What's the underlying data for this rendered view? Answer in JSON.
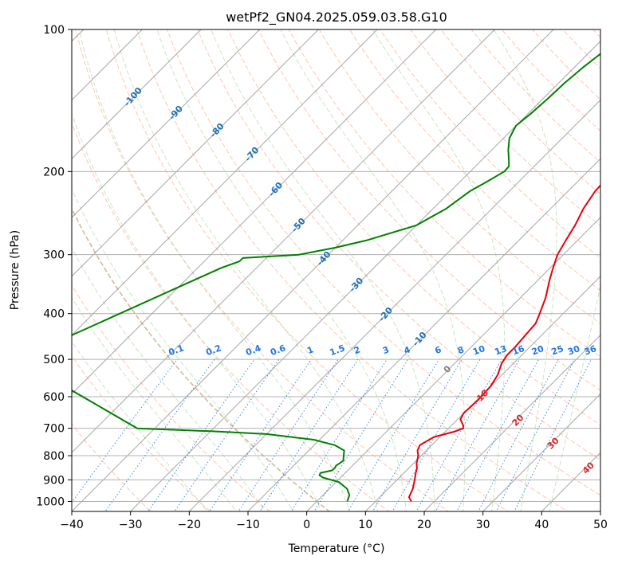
{
  "chart_data": {
    "type": "line",
    "title": "wetPf2_GN04.2025.059.03.58.G10",
    "xlabel": "Temperature (°C)",
    "ylabel": "Pressure (hPa)",
    "xlim": [
      -40,
      50
    ],
    "ylim": [
      1050,
      100
    ],
    "yscale": "log",
    "x_ticks": [
      -40,
      -30,
      -20,
      -10,
      0,
      10,
      20,
      30,
      40,
      50
    ],
    "x_tick_labels": [
      "−40",
      "−30",
      "−20",
      "−10",
      "0",
      "10",
      "20",
      "30",
      "40",
      "50"
    ],
    "y_ticks": [
      1000,
      900,
      800,
      700,
      600,
      500,
      400,
      300,
      200,
      100
    ],
    "y_tick_labels": [
      "1000",
      "900",
      "800",
      "700",
      "600",
      "500",
      "400",
      "300",
      "200",
      "100"
    ],
    "skew_per_decade": 80.3,
    "grid": true,
    "series": [
      {
        "color": "#e8000b",
        "points": [
          [
            1000,
            16.1
          ],
          [
            980,
            15.0
          ],
          [
            940,
            14.2
          ],
          [
            900,
            13.0
          ],
          [
            870,
            12.0
          ],
          [
            850,
            11.4
          ],
          [
            830,
            10.5
          ],
          [
            800,
            9.5
          ],
          [
            780,
            8.5
          ],
          [
            760,
            8.0
          ],
          [
            730,
            9.0
          ],
          [
            712,
            11.5
          ],
          [
            700,
            12.5
          ],
          [
            690,
            12.0
          ],
          [
            670,
            10.5
          ],
          [
            650,
            10.0
          ],
          [
            610,
            10.2
          ],
          [
            570,
            10.0
          ],
          [
            540,
            9.3
          ],
          [
            510,
            8.0
          ],
          [
            490,
            7.5
          ],
          [
            470,
            7.5
          ],
          [
            450,
            7.3
          ],
          [
            420,
            7.0
          ],
          [
            400,
            6.0
          ],
          [
            370,
            4.3
          ],
          [
            340,
            2.0
          ],
          [
            320,
            0.5
          ],
          [
            300,
            -1.0
          ],
          [
            280,
            -2.0
          ],
          [
            260,
            -3.0
          ],
          [
            240,
            -4.4
          ],
          [
            220,
            -5.4
          ],
          [
            210,
            -5.5
          ],
          [
            205,
            -5.0
          ],
          [
            200,
            -3.8
          ],
          [
            195,
            -2.5
          ],
          [
            190,
            -1.0
          ],
          [
            180,
            1.5
          ],
          [
            170,
            4.0
          ],
          [
            160,
            6.0
          ],
          [
            150,
            7.5
          ],
          [
            140,
            9.5
          ],
          [
            130,
            11.5
          ],
          [
            120,
            13.0
          ],
          [
            115,
            14.0
          ],
          [
            110,
            15.0
          ],
          [
            105,
            16.0
          ],
          [
            100,
            18.0
          ]
        ]
      },
      {
        "color": "#008000",
        "points": [
          [
            1000,
            5.2
          ],
          [
            970,
            4.5
          ],
          [
            940,
            3.0
          ],
          [
            910,
            0.5
          ],
          [
            890,
            -3.0
          ],
          [
            880,
            -4.0
          ],
          [
            870,
            -4.2
          ],
          [
            860,
            -2.7
          ],
          [
            850,
            -2.6
          ],
          [
            840,
            -2.8
          ],
          [
            820,
            -2.4
          ],
          [
            800,
            -3.2
          ],
          [
            780,
            -4.0
          ],
          [
            760,
            -6.5
          ],
          [
            740,
            -11.0
          ],
          [
            720,
            -20.0
          ],
          [
            710,
            -30.0
          ],
          [
            700,
            -43.0
          ],
          [
            500,
            -75.0
          ],
          [
            320,
            -56.0
          ],
          [
            310,
            -54.0
          ],
          [
            305,
            -54.0
          ],
          [
            300,
            -45.0
          ],
          [
            290,
            -40.0
          ],
          [
            280,
            -36.0
          ],
          [
            260,
            -30.0
          ],
          [
            240,
            -27.8
          ],
          [
            220,
            -26.7
          ],
          [
            210,
            -25.4
          ],
          [
            200,
            -24.2
          ],
          [
            195,
            -24.3
          ],
          [
            190,
            -25.2
          ],
          [
            180,
            -27.2
          ],
          [
            170,
            -29.0
          ],
          [
            160,
            -30.0
          ],
          [
            150,
            -29.5
          ],
          [
            140,
            -29.2
          ],
          [
            130,
            -29.0
          ],
          [
            120,
            -28.5
          ],
          [
            112,
            -27.8
          ],
          [
            106,
            -26.0
          ],
          [
            100,
            -22.8
          ]
        ]
      }
    ],
    "isotherm_labels": [
      "-100",
      "-90",
      "-80",
      "-70",
      "-60",
      "-50",
      "-40",
      "-30",
      "-20",
      "-10"
    ],
    "mixing_ratio_labels": [
      "0.1",
      "0.2",
      "0.4",
      "0.6",
      "1",
      "1.5",
      "2",
      "3",
      "4",
      "6",
      "8",
      "10",
      "13",
      "16",
      "20",
      "25",
      "30",
      "36"
    ],
    "moist_adiabat_labels": [
      "0",
      "10",
      "20",
      "30",
      "40"
    ],
    "colors": {
      "temperature": "#e8000b",
      "dewpoint": "#008000",
      "isotherm": "#888888",
      "dry_adiabat": "#ff7f50",
      "moist_adiabat": "#9ccf8f",
      "mixing_ratio": "#1f77e4",
      "isotherm_label": "#1f6fb4",
      "moist_label": "#d62728",
      "dry_curve": "#c8aa82"
    }
  }
}
